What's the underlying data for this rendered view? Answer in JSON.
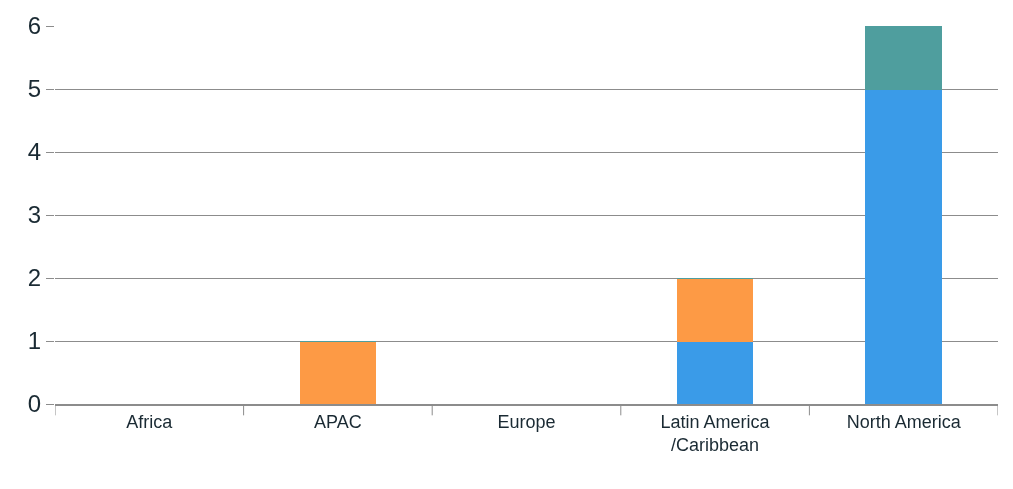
{
  "chart_data": {
    "type": "bar",
    "stacked": true,
    "categories": [
      "Africa",
      "APAC",
      "Europe",
      "Latin America\n/Caribbean",
      "North America"
    ],
    "series": [
      {
        "color": "#3a9be8",
        "values": [
          0,
          0,
          0,
          1,
          5
        ]
      },
      {
        "color": "#fd9a45",
        "values": [
          0,
          1,
          0,
          1,
          0
        ]
      },
      {
        "color": "#4f9e9e",
        "values": [
          0,
          0,
          0,
          0,
          1
        ]
      }
    ],
    "ylim": [
      0,
      6
    ],
    "yticks": [
      0,
      1,
      2,
      3,
      4,
      5,
      6
    ],
    "grid": "y",
    "legend": false
  }
}
